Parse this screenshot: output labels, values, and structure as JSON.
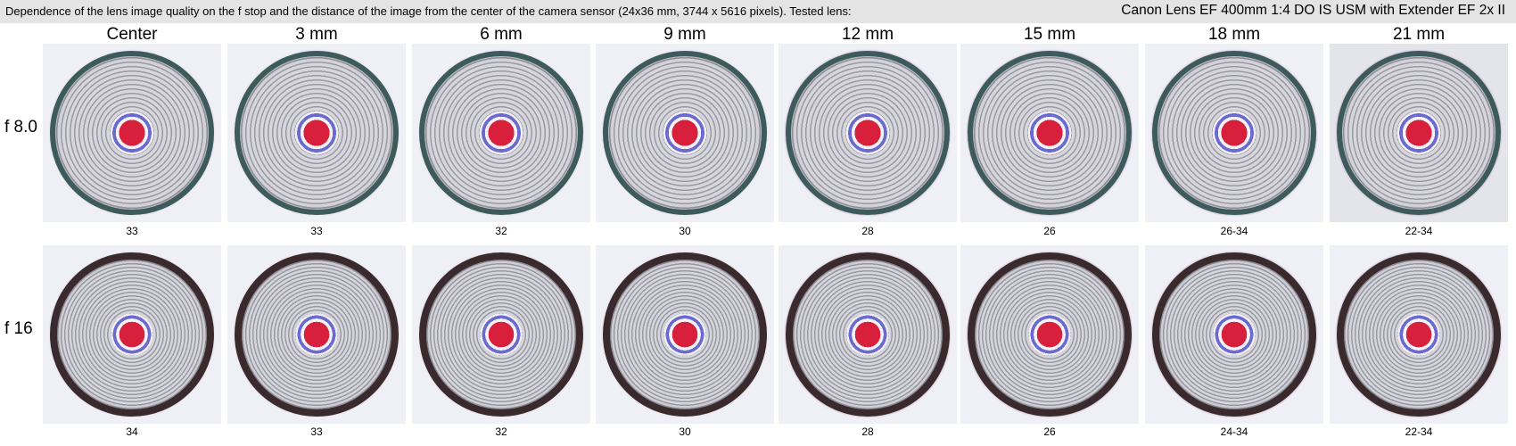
{
  "header": {
    "description": "Dependence of the lens image quality on the f stop and the distance of the image from the center of the camera sensor (24x36 mm, 3744 x 5616 pixels).  Tested lens:",
    "lens": "Canon Lens EF 400mm 1:4 DO IS USM with Extender EF 2x II"
  },
  "columns": [
    "Center",
    "3 mm",
    "6 mm",
    "9 mm",
    "12 mm",
    "15 mm",
    "18 mm",
    "21 mm"
  ],
  "rows": [
    {
      "label": "f 8.0",
      "scores": [
        "33",
        "33",
        "32",
        "30",
        "28",
        "26",
        "26-34",
        "22-34"
      ]
    },
    {
      "label": "f 16",
      "scores": [
        "34",
        "33",
        "32",
        "30",
        "28",
        "26",
        "24-34",
        "22-34"
      ]
    }
  ],
  "colors": {
    "header_bg": "#e4e4e4",
    "tile_bg": "#eef0f5",
    "ring_f8": "#3d5a5c",
    "ring_f16": "#3a2a2e",
    "rings_gray": "#9a9aa4",
    "center_red": "#d8203c",
    "halo_blue": "#6a6ad0"
  }
}
